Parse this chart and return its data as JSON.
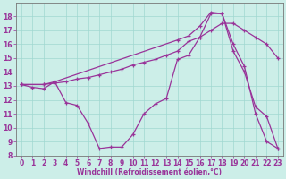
{
  "xlabel": "Windchill (Refroidissement éolien,°C)",
  "bg_color": "#cceee8",
  "line_color": "#993399",
  "xlim": [
    -0.5,
    23.5
  ],
  "ylim": [
    8,
    19
  ],
  "xticks": [
    0,
    1,
    2,
    3,
    4,
    5,
    6,
    7,
    8,
    9,
    10,
    11,
    12,
    13,
    14,
    15,
    16,
    17,
    18,
    19,
    20,
    21,
    22,
    23
  ],
  "yticks": [
    8,
    9,
    10,
    11,
    12,
    13,
    14,
    15,
    16,
    17,
    18
  ],
  "line1_x": [
    0,
    1,
    2,
    3,
    4,
    5,
    6,
    7,
    8,
    9,
    10,
    11,
    12,
    13,
    14,
    15,
    16,
    17,
    18,
    19,
    20,
    21,
    22,
    23
  ],
  "line1_y": [
    13.1,
    12.9,
    12.8,
    13.3,
    11.8,
    11.6,
    10.3,
    8.5,
    8.6,
    8.6,
    9.5,
    11.0,
    11.7,
    12.1,
    14.9,
    15.2,
    16.5,
    18.2,
    18.2,
    16.0,
    14.4,
    11.0,
    9.0,
    8.5
  ],
  "line2_x": [
    0,
    2,
    3,
    4,
    5,
    6,
    7,
    8,
    9,
    10,
    11,
    12,
    13,
    14,
    15,
    16,
    17,
    18,
    19,
    20,
    21,
    22,
    23
  ],
  "line2_y": [
    13.1,
    13.1,
    13.2,
    13.3,
    13.5,
    13.6,
    13.8,
    14.0,
    14.2,
    14.5,
    14.7,
    14.9,
    15.2,
    15.5,
    16.2,
    16.5,
    17.0,
    17.5,
    17.5,
    17.0,
    16.5,
    16.0,
    15.0
  ],
  "line3_x": [
    0,
    2,
    3,
    14,
    15,
    16,
    17,
    18,
    19,
    20,
    21,
    22,
    23
  ],
  "line3_y": [
    13.1,
    13.1,
    13.3,
    16.3,
    16.6,
    17.3,
    18.3,
    18.2,
    15.5,
    14.0,
    11.5,
    10.8,
    8.5
  ],
  "marker_size": 3.5,
  "marker_ew": 0.9,
  "lw": 0.9,
  "grid_color": "#a0d8d0",
  "tick_fontsize": 5.5
}
